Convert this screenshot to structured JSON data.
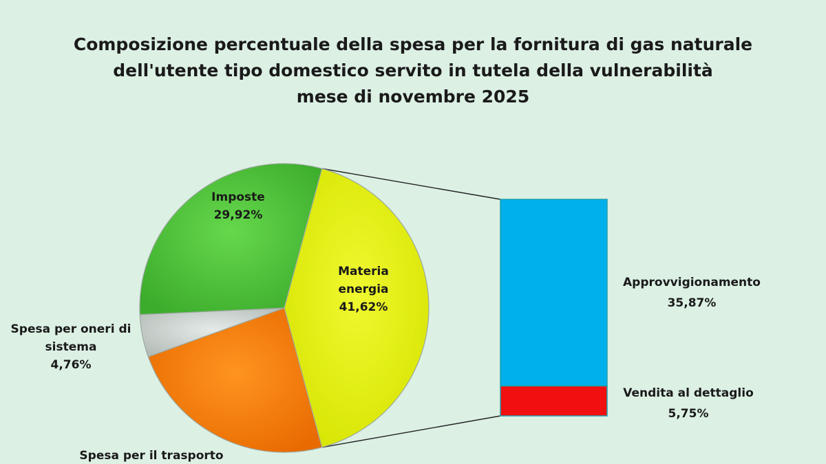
{
  "title_lines": [
    "Composizione percentuale della spesa per la fornitura di gas naturale",
    "dell'utente tipo domestico servito in tutela della vulnerabilità",
    "mese di novembre 2025"
  ],
  "chart_data": {
    "type": "pie",
    "title": "Composizione percentuale della spesa per la fornitura di gas naturale dell'utente tipo domestico servito in tutela della vulnerabilità mese di novembre 2025",
    "slices": [
      {
        "label_lines": [
          "Materia",
          "energia"
        ],
        "value": 41.62,
        "value_label": "41,62%",
        "color": "#e2ee00"
      },
      {
        "label_lines": [
          "Spesa per il trasporto"
        ],
        "value": 23.7,
        "value_label": "",
        "color": "#f07a00"
      },
      {
        "label_lines": [
          "Spesa per oneri di",
          "sistema"
        ],
        "value": 4.76,
        "value_label": "4,76%",
        "color": "#c4ccc8"
      },
      {
        "label_lines": [
          "Imposte"
        ],
        "value": 29.92,
        "value_label": "29,92%",
        "color": "#4cbf38"
      }
    ],
    "breakdown": {
      "of_slice": 0,
      "segments": [
        {
          "label": "Approvvigionamento",
          "value": 35.87,
          "value_label": "35,87%",
          "color": "#00b0ec"
        },
        {
          "label": "Vendita al dettaglio",
          "value": 5.75,
          "value_label": "5,75%",
          "color": "#f01010"
        }
      ]
    }
  }
}
